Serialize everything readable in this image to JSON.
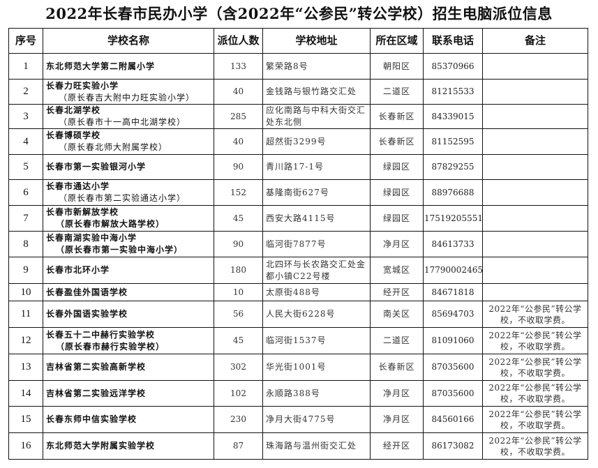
{
  "title": "2022年长春市民办小学（含2022年“公参民”转公学校）招生电脑派位信息",
  "headers": {
    "no": "序号",
    "name": "学校名称",
    "count": "派位人数",
    "address": "学校地址",
    "district": "所在区域",
    "phone": "联系电话",
    "note": "备注"
  },
  "rows": [
    {
      "no": "1",
      "name": "东北师范大学第二附属小学",
      "former": "",
      "count": "133",
      "address": "繁荣路8号",
      "district": "朝阳区",
      "phone": "85370966",
      "note": ""
    },
    {
      "no": "2",
      "name": "长春力旺实验小学",
      "former": "（原长春吉大附中力旺实验小学）",
      "count": "40",
      "address": "金钱路与银竹路交汇处",
      "district": "二道区",
      "phone": "81215533",
      "note": ""
    },
    {
      "no": "3",
      "name": "长春北湖学校",
      "former": "（原长春市十一高中北湖学校）",
      "count": "285",
      "address": "应化南路与中科大街交汇处东北侧",
      "district": "长春新区",
      "phone": "84339015",
      "note": ""
    },
    {
      "no": "4",
      "name": "长春博硕学校",
      "former": "（原长春北师大附属学校）",
      "count": "40",
      "address": "超然街3299号",
      "district": "长春新区",
      "phone": "81152595",
      "note": ""
    },
    {
      "no": "5",
      "name": "长春市第一实验银河小学",
      "former": "",
      "count": "90",
      "address": "青川路17-1号",
      "district": "绿园区",
      "phone": "87829255",
      "note": ""
    },
    {
      "no": "6",
      "name": "长春市通达小学",
      "former": "（原长春市第二实验通达小学）",
      "count": "152",
      "address": "基隆南街627号",
      "district": "绿园区",
      "phone": "88976688",
      "note": ""
    },
    {
      "no": "7",
      "name": "长春市新解放学校",
      "former": "（原长春市解放大路学校）",
      "count": "45",
      "address": "西安大路4115号",
      "district": "绿园区",
      "phone": "17519205551",
      "note": ""
    },
    {
      "no": "8",
      "name": "长春南湖实验中海小学",
      "former": "（原长春市第一实验中海小学）",
      "count": "90",
      "address": "临河街7877号",
      "district": "净月区",
      "phone": "84613733",
      "note": ""
    },
    {
      "no": "9",
      "name": "长春市北环小学",
      "former": "",
      "count": "180",
      "address": "北四环与长农路交汇处金都小镇C22号楼",
      "district": "宽城区",
      "phone": "17790002465",
      "note": ""
    },
    {
      "no": "10",
      "name": "长春盈佳外国语学校",
      "former": "",
      "count": "10",
      "address": "太原街488号",
      "district": "经开区",
      "phone": "84671818",
      "note": ""
    },
    {
      "no": "11",
      "name": "长春外国语实验学校",
      "former": "",
      "count": "56",
      "address": "人民大街6228号",
      "district": "南关区",
      "phone": "85694703",
      "note": "2022年“公参民”转公学校，不收取学费。"
    },
    {
      "no": "12",
      "name": "长春五十二中赫行实验学校",
      "former": "（原长春市赫行实验学校）",
      "count": "45",
      "address": "临河街1537号",
      "district": "二道区",
      "phone": "81091060",
      "note": "2022年“公参民”转公学校，不收取学费。"
    },
    {
      "no": "13",
      "name": "吉林省第二实验高新学校",
      "former": "",
      "count": "302",
      "address": "华光街1001号",
      "district": "长春新区",
      "phone": "87035600",
      "note": "2022年“公参民”转公学校，不收取学费。"
    },
    {
      "no": "14",
      "name": "吉林省第二实验远洋学校",
      "former": "",
      "count": "102",
      "address": "永顺路388号",
      "district": "净月区",
      "phone": "87035600",
      "note": "2022年“公参民”转公学校，不收取学费。"
    },
    {
      "no": "15",
      "name": "长春东师中信实验学校",
      "former": "",
      "count": "230",
      "address": "净月大街4775号",
      "district": "净月区",
      "phone": "84560166",
      "note": "2022年“公参民”转公学校，不收取学费。"
    },
    {
      "no": "16",
      "name": "东北师范大学附属实验学校",
      "former": "",
      "count": "87",
      "address": "珠海路与温州街交汇处",
      "district": "经开区",
      "phone": "86173082",
      "note": "2022年“公参民”转公学校，不收取学费。"
    }
  ]
}
